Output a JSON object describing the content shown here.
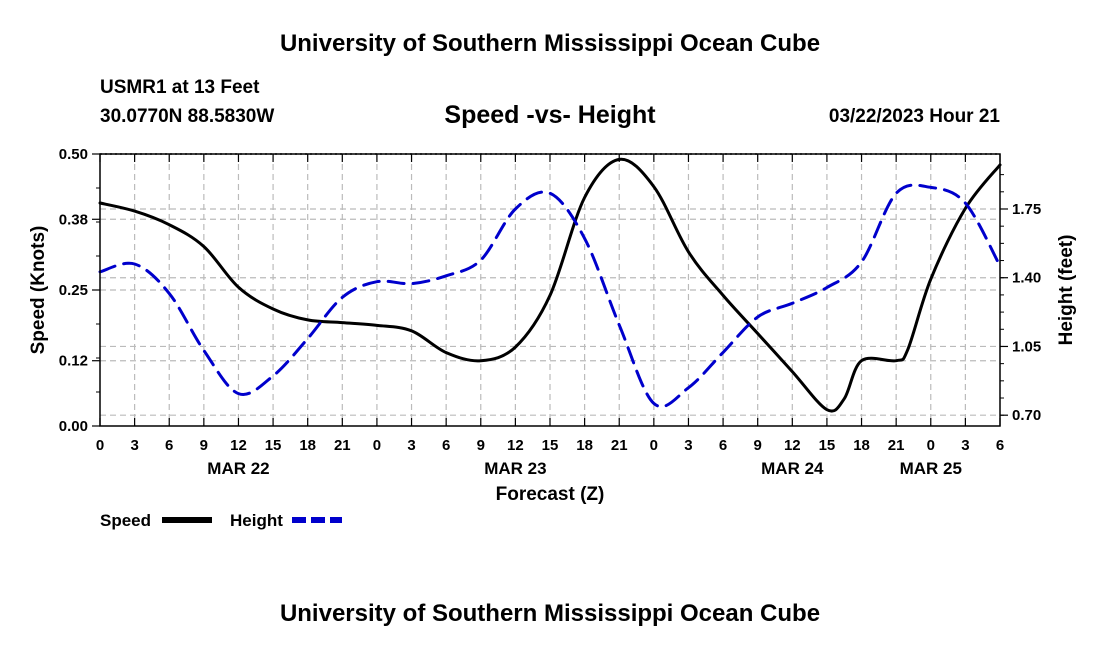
{
  "page": {
    "title_top": "University of Southern Mississippi Ocean Cube",
    "title_bottom": "University of Southern Mississippi Ocean Cube",
    "station": "USMR1 at 13 Feet",
    "coords": "30.0770N  88.5830W",
    "datetime": "03/22/2023 Hour 21",
    "legend_speed": "Speed",
    "legend_height": "Height",
    "colors": {
      "speed": "#000000",
      "height": "#0000cc",
      "grid": "#bbbbbb"
    }
  },
  "chart_data": {
    "type": "line",
    "title": "Speed -vs- Height",
    "xlabel": "Forecast (Z)",
    "ylabel": "Speed (Knots)",
    "y2label": "Height (feet)",
    "xlim": [
      0,
      78
    ],
    "ylim": [
      0,
      0.5
    ],
    "y2lim": [
      0.645,
      2.03
    ],
    "yticks": [
      "0.00",
      "0.12",
      "0.25",
      "0.38",
      "0.50"
    ],
    "y2ticks": [
      "0.70",
      "1.05",
      "1.40",
      "1.75"
    ],
    "xtick_labels": [
      "0",
      "3",
      "6",
      "9",
      "12",
      "15",
      "18",
      "21",
      "0",
      "3",
      "6",
      "9",
      "12",
      "15",
      "18",
      "21",
      "0",
      "3",
      "6",
      "9",
      "12",
      "15",
      "18",
      "21",
      "0",
      "3",
      "6"
    ],
    "date_labels": [
      {
        "x": 12,
        "label": "MAR 22"
      },
      {
        "x": 36,
        "label": "MAR 23"
      },
      {
        "x": 60,
        "label": "MAR 24"
      },
      {
        "x": 72,
        "label": "MAR 25"
      }
    ],
    "series": [
      {
        "name": "Speed",
        "axis": "left",
        "x": [
          0,
          3,
          6,
          9,
          12,
          15,
          18,
          21,
          24,
          27,
          30,
          33,
          36,
          39,
          42,
          45,
          48,
          51,
          54,
          57,
          60,
          63,
          64.5,
          66,
          69,
          70,
          72,
          75,
          78
        ],
        "values": [
          0.41,
          0.395,
          0.37,
          0.33,
          0.255,
          0.215,
          0.195,
          0.19,
          0.185,
          0.175,
          0.135,
          0.12,
          0.145,
          0.24,
          0.42,
          0.49,
          0.44,
          0.32,
          0.24,
          0.17,
          0.1,
          0.03,
          0.05,
          0.12,
          0.12,
          0.14,
          0.27,
          0.4,
          0.48
        ]
      },
      {
        "name": "Height",
        "axis": "right",
        "x": [
          0,
          3,
          6,
          9,
          12,
          15,
          18,
          21,
          24,
          27,
          30,
          33,
          36,
          39,
          42,
          45,
          48,
          51,
          54,
          57,
          60,
          63,
          66,
          69,
          72,
          75,
          78
        ],
        "values": [
          1.43,
          1.47,
          1.32,
          1.03,
          0.81,
          0.9,
          1.09,
          1.3,
          1.38,
          1.37,
          1.41,
          1.49,
          1.75,
          1.83,
          1.6,
          1.16,
          0.76,
          0.84,
          1.02,
          1.2,
          1.27,
          1.35,
          1.48,
          1.83,
          1.86,
          1.78,
          1.46
        ]
      }
    ]
  }
}
